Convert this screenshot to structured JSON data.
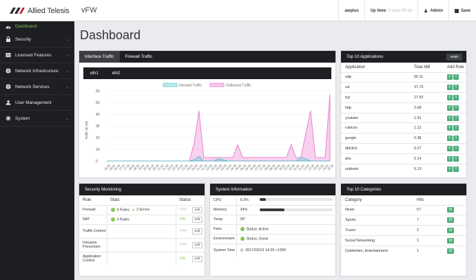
{
  "header": {
    "brand": "Allied Telesis",
    "app": "vFW",
    "host": "awplus",
    "uptime_label": "Up time:",
    "uptime_value": "0 days 00:14",
    "admin": "Admin",
    "save": "Save"
  },
  "sidebar": {
    "items": [
      {
        "label": "Dashboard",
        "icon": "gauge-icon"
      },
      {
        "label": "Security",
        "icon": "lock-icon"
      },
      {
        "label": "Licensed Features",
        "icon": "license-icon"
      },
      {
        "label": "Network Infrastructure",
        "icon": "globe-icon"
      },
      {
        "label": "Network Services",
        "icon": "globe-icon"
      },
      {
        "label": "User Management",
        "icon": "users-icon"
      },
      {
        "label": "System",
        "icon": "gear-icon"
      }
    ]
  },
  "page_title": "Dashboard",
  "traffic": {
    "tabs": [
      "Interface Traffic",
      "Firewall Traffic"
    ],
    "interfaces": [
      "eth1",
      "eth2"
    ]
  },
  "chart_data": {
    "type": "area",
    "ylabel": "Traffic (in KB)",
    "ylim": [
      0,
      60
    ],
    "yticks": [
      0,
      10,
      20,
      30,
      40,
      50,
      60
    ],
    "x": [
      "15:30",
      "16:00",
      "16:30",
      "17:00",
      "17:30",
      "18:00",
      "18:30",
      "19:00",
      "19:30",
      "20:00",
      "20:30",
      "21:00",
      "21:30",
      "22:00",
      "22:30",
      "23:00",
      "23:30",
      "00:00",
      "00:30",
      "01:00",
      "01:30",
      "02:00",
      "02:30",
      "03:00",
      "03:30",
      "04:00",
      "04:30",
      "05:00",
      "05:30",
      "06:00",
      "06:30",
      "07:00",
      "07:30",
      "08:00",
      "08:30",
      "09:00",
      "09:30",
      "10:00",
      "10:30",
      "11:00",
      "11:30",
      "12:00",
      "12:30",
      "13:00",
      "13:30",
      "14:00",
      "14:30"
    ],
    "legend_position": "top",
    "grid": true,
    "series": [
      {
        "name": "Inbound Traffic",
        "color": "#3fc1c9",
        "values": [
          0,
          0,
          0,
          0,
          0,
          0,
          0,
          0,
          0,
          0,
          0,
          0,
          0,
          0,
          0,
          0,
          0,
          0,
          1,
          4,
          0,
          0,
          0,
          2,
          1,
          0,
          0,
          0,
          0,
          0,
          0,
          0,
          0,
          0,
          0,
          0,
          0,
          0,
          0,
          0,
          3,
          2,
          0,
          0,
          0,
          0,
          0
        ]
      },
      {
        "name": "Outbound Traffic",
        "color": "#e668c6",
        "values": [
          0,
          0,
          0,
          0,
          0,
          0,
          0,
          0,
          0,
          0,
          0,
          0,
          0,
          0,
          0,
          0,
          0,
          0,
          15,
          43,
          3,
          3,
          3,
          3,
          3,
          3,
          3,
          14,
          3,
          3,
          3,
          3,
          3,
          3,
          3,
          3,
          3,
          3,
          14,
          3,
          3,
          23,
          43,
          3,
          3,
          3,
          57
        ]
      }
    ]
  },
  "top_apps": {
    "title": "Top 10 Applications",
    "reset": "reset",
    "columns": [
      "Application",
      "Total MB",
      "Add Rule"
    ],
    "rows": [
      [
        "udp",
        "55.11"
      ],
      [
        "ssl",
        "37.79"
      ],
      [
        "tcp",
        "27.92"
      ],
      [
        "http",
        "2.08"
      ],
      [
        "youtube",
        "1.91"
      ],
      [
        "rubicon",
        "1.12"
      ],
      [
        "google",
        "0.38"
      ],
      [
        "dblclick",
        "0.27"
      ],
      [
        "dns",
        "0.14"
      ],
      [
        "outbrain",
        "0.13"
      ]
    ],
    "btn_a": "F",
    "btn_b": "T"
  },
  "security": {
    "title": "Security Monitoring",
    "columns": [
      "Rule",
      "Stats",
      "Status"
    ],
    "rows": [
      {
        "rule": "Firewall",
        "stats": "6 Rules",
        "warn": "2 Errors",
        "status": "OFF"
      },
      {
        "rule": "NAT",
        "stats": "3 Rules",
        "warn": "",
        "status": "ON"
      },
      {
        "rule": "Traffic Control",
        "stats": "",
        "warn": "",
        "status": "OFF"
      },
      {
        "rule": "Intrusion Prevention",
        "stats": "",
        "warn": "",
        "status": "OFF"
      },
      {
        "rule": "Application Control",
        "stats": "",
        "warn": "",
        "status": "ON"
      }
    ],
    "edit": "edit"
  },
  "sysinfo": {
    "title": "System Information",
    "cpu_label": "CPU",
    "cpu": "9.3%",
    "cpu_frac": 0.093,
    "mem_label": "Memory",
    "mem": "34%",
    "mem_frac": 0.34,
    "temp_label": "Temp",
    "temp": "35°",
    "fans_label": "Fans",
    "fans": "Status: Active",
    "env_label": "Environment",
    "env": "Status: Good",
    "time_label": "System Time",
    "time": "2017/03/13 14:29 +1300"
  },
  "categories": {
    "title": "Top 10 Categories",
    "columns": [
      "Category",
      "Hits"
    ],
    "rows": [
      [
        "News",
        "57"
      ],
      [
        "Sports",
        "7"
      ],
      [
        "Travel",
        "2"
      ],
      [
        "Social Networking",
        "1"
      ],
      [
        "Celebrities, Entertainment",
        "1"
      ]
    ],
    "btn": "W"
  }
}
